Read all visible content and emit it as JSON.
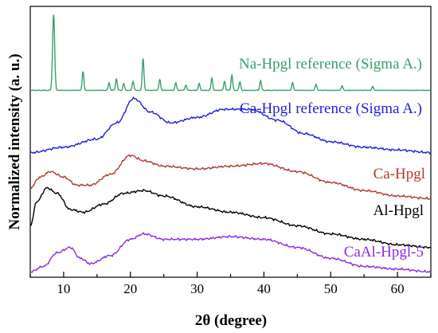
{
  "chart_data": {
    "type": "line",
    "title": "",
    "xlabel": "2θ (degree)",
    "ylabel": "Normalized intensity (a. u.)",
    "xlim": [
      5,
      65
    ],
    "xticks": [
      "10",
      "20",
      "30",
      "40",
      "50",
      "60"
    ],
    "y_ticks_shown": false,
    "grid": false,
    "legend": "inline labels next to curves",
    "series": [
      {
        "name": "Na-Hpgl reference (Sigma A.)",
        "color": "#3a9e6e",
        "baseline": 0.13,
        "peaks": [
          [
            8.5,
            1.0
          ],
          [
            12.9,
            0.25
          ],
          [
            16.8,
            0.1
          ],
          [
            17.9,
            0.15
          ],
          [
            19.0,
            0.09
          ],
          [
            20.4,
            0.12
          ],
          [
            21.9,
            0.42
          ],
          [
            24.4,
            0.14
          ],
          [
            26.8,
            0.1
          ],
          [
            28.3,
            0.07
          ],
          [
            30.3,
            0.09
          ],
          [
            32.2,
            0.16
          ],
          [
            34.1,
            0.12
          ],
          [
            35.2,
            0.2
          ],
          [
            36.4,
            0.11
          ],
          [
            39.5,
            0.13
          ],
          [
            44.3,
            0.1
          ],
          [
            47.8,
            0.08
          ],
          [
            51.7,
            0.06
          ],
          [
            56.3,
            0.05
          ]
        ]
      },
      {
        "name": "Ca-Hpgl reference (Sigma A.)",
        "color": "#1f1fd6",
        "x": [
          5,
          10,
          15,
          18,
          20.5,
          23,
          26,
          30,
          34,
          38,
          42,
          46,
          50,
          55,
          60,
          65
        ],
        "y": [
          0.46,
          0.48,
          0.51,
          0.57,
          0.66,
          0.61,
          0.57,
          0.59,
          0.62,
          0.62,
          0.58,
          0.53,
          0.5,
          0.48,
          0.47,
          0.46
        ]
      },
      {
        "name": "Ca-Hpgl",
        "color": "#b03a2e",
        "x": [
          5,
          6.5,
          8,
          10,
          12,
          14,
          17,
          20,
          22,
          25,
          30,
          35,
          40,
          45,
          50,
          55,
          60,
          65
        ],
        "y": [
          0.33,
          0.37,
          0.39,
          0.37,
          0.34,
          0.34,
          0.38,
          0.45,
          0.43,
          0.41,
          0.4,
          0.41,
          0.42,
          0.39,
          0.35,
          0.32,
          0.3,
          0.29
        ]
      },
      {
        "name": "Al-Hpgl",
        "color": "#000000",
        "x": [
          5,
          6,
          7.5,
          9,
          11,
          13,
          16,
          19,
          22,
          25,
          30,
          35,
          40,
          45,
          50,
          55,
          60,
          65
        ],
        "y": [
          0.19,
          0.28,
          0.33,
          0.31,
          0.25,
          0.24,
          0.27,
          0.31,
          0.32,
          0.3,
          0.26,
          0.24,
          0.22,
          0.19,
          0.16,
          0.14,
          0.12,
          0.11
        ]
      },
      {
        "name": "CaAl-Hpgl-5",
        "color": "#8a2be2",
        "x": [
          5,
          7,
          9,
          11,
          12.5,
          14,
          17,
          20,
          22,
          25,
          30,
          35,
          40,
          45,
          50,
          55,
          60,
          65
        ],
        "y": [
          0.02,
          0.04,
          0.09,
          0.11,
          0.07,
          0.05,
          0.08,
          0.14,
          0.16,
          0.14,
          0.14,
          0.15,
          0.14,
          0.11,
          0.07,
          0.04,
          0.03,
          0.02
        ]
      }
    ]
  }
}
